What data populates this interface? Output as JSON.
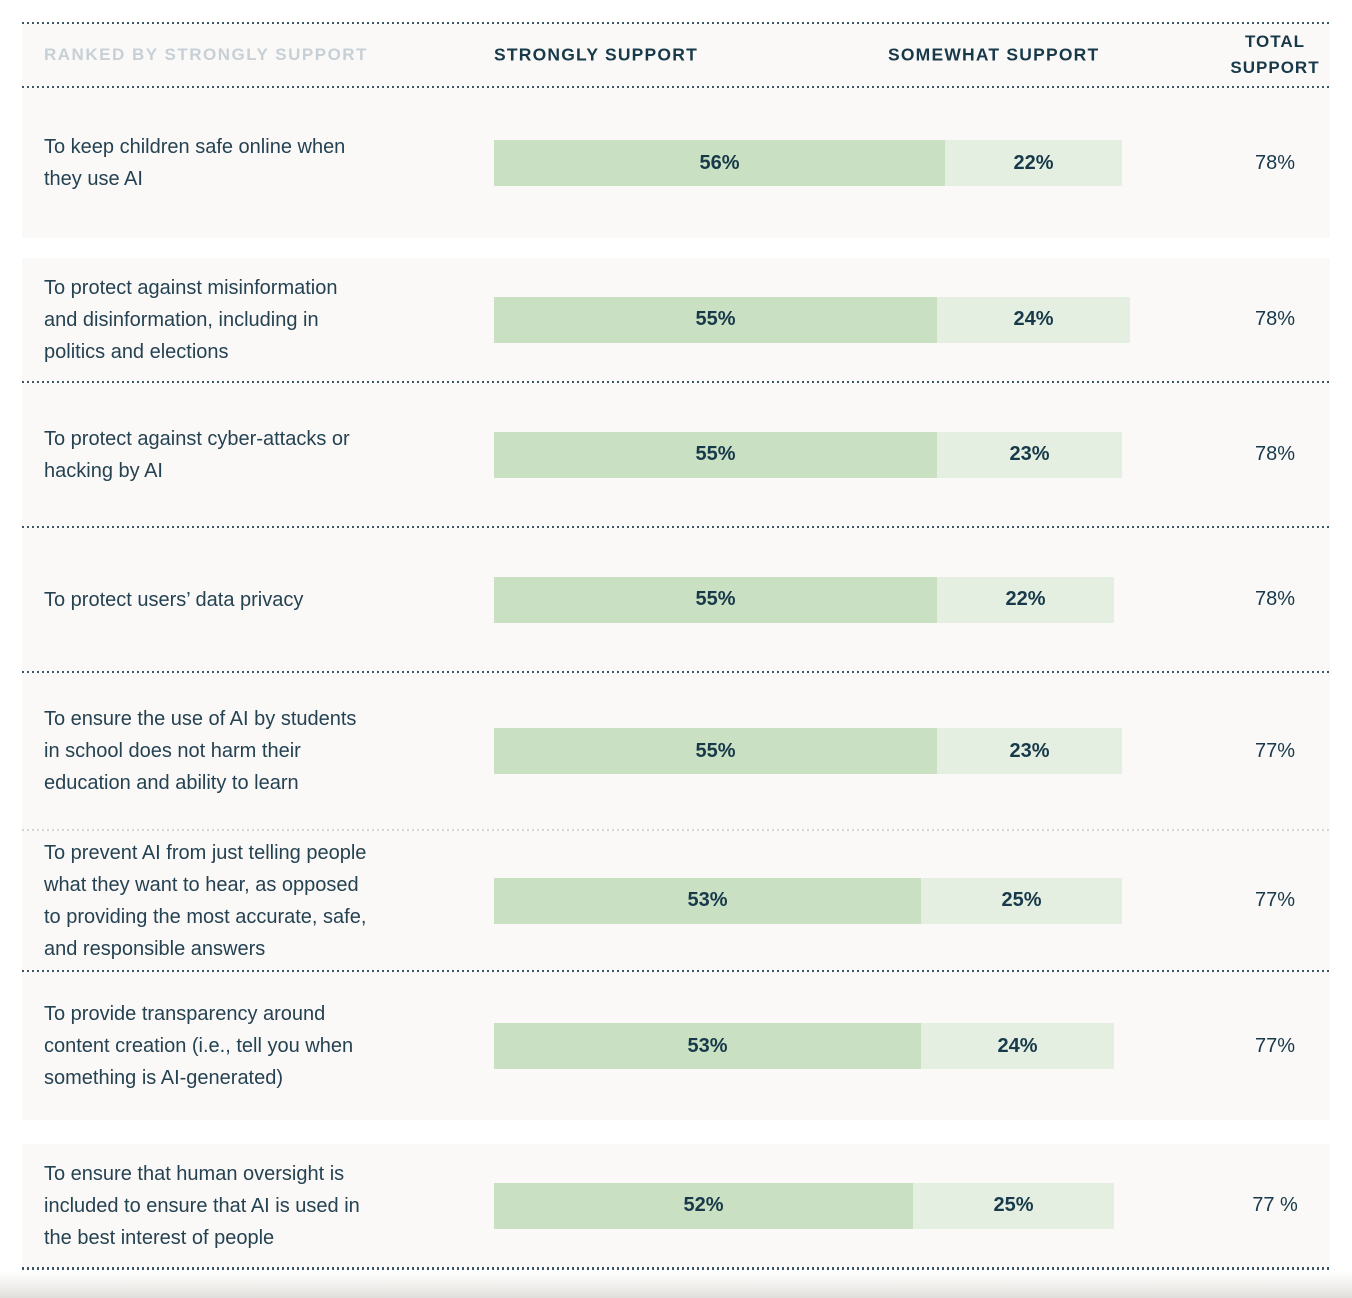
{
  "header": {
    "ranked_by": "RANKED BY STRONGLY SUPPORT",
    "strongly": "STRONGLY SUPPORT",
    "somewhat": "SOMEWHAT SUPPORT",
    "total": "TOTAL SUPPORT"
  },
  "colors": {
    "strongly_bar": "#cae0c3",
    "somewhat_bar": "#e4efe1",
    "navy_text": "#17394a",
    "label_text": "#254252",
    "muted_header_text": "#c7d0d6",
    "card_background": "#faf9f7",
    "separator_dark": "#3c5663",
    "separator_faint": "#d2d6d1"
  },
  "rows": [
    {
      "label_lines": [
        "To keep children safe online when",
        "they use AI"
      ],
      "strongly_value": 56,
      "strongly_label": "56%",
      "somewhat_value": 22,
      "somewhat_label": "22%",
      "total_label": "78%"
    },
    {
      "label_lines": [
        "To protect against misinformation",
        "and disinformation, including in",
        "politics and elections"
      ],
      "strongly_value": 55,
      "strongly_label": "55%",
      "somewhat_value": 24,
      "somewhat_label": "24%",
      "total_label": "78%"
    },
    {
      "label_lines": [
        "To protect against cyber-attacks or",
        "hacking by AI"
      ],
      "strongly_value": 55,
      "strongly_label": "55%",
      "somewhat_value": 23,
      "somewhat_label": "23%",
      "total_label": "78%"
    },
    {
      "label_lines": [
        "To protect users’ data privacy"
      ],
      "strongly_value": 55,
      "strongly_label": "55%",
      "somewhat_value": 22,
      "somewhat_label": "22%",
      "total_label": "78%"
    },
    {
      "label_lines": [
        "To ensure the use of AI by students",
        "in school does not harm their",
        "education and ability to learn"
      ],
      "strongly_value": 55,
      "strongly_label": "55%",
      "somewhat_value": 23,
      "somewhat_label": "23%",
      "total_label": "77%"
    },
    {
      "label_lines": [
        "To prevent AI from just telling people",
        "what they want to hear, as opposed",
        "to providing the most accurate, safe,",
        "and responsible answers"
      ],
      "strongly_value": 53,
      "strongly_label": "53%",
      "somewhat_value": 25,
      "somewhat_label": "25%",
      "total_label": "77%"
    },
    {
      "label_lines": [
        "To provide transparency around",
        "content creation (i.e., tell you when",
        "something is AI-generated)"
      ],
      "strongly_value": 53,
      "strongly_label": "53%",
      "somewhat_value": 24,
      "somewhat_label": "24%",
      "total_label": "77%"
    },
    {
      "label_lines": [
        "To ensure that human oversight is",
        "included to ensure that AI is used in",
        "the best interest of people"
      ],
      "strongly_value": 52,
      "strongly_label": "52%",
      "somewhat_value": 25,
      "somewhat_label": "25%",
      "total_label": "77 %"
    }
  ],
  "chart_data": {
    "type": "bar",
    "orientation": "horizontal",
    "stacked": true,
    "title": "Ranked by strongly support",
    "categories": [
      "To keep children safe online when they use AI",
      "To protect against misinformation and disinformation, including in politics and elections",
      "To protect against cyber-attacks or hacking by AI",
      "To protect users’ data privacy",
      "To ensure the use of AI by students in school does not harm their education and ability to learn",
      "To prevent AI from just telling people what they want to hear, as opposed to providing the most accurate, safe, and responsible answers",
      "To provide transparency around content creation (i.e., tell you when something is AI-generated)",
      "To ensure that human oversight is included to ensure that AI is used in the best interest of people"
    ],
    "series": [
      {
        "name": "Strongly support",
        "values": [
          56,
          55,
          55,
          55,
          55,
          53,
          53,
          52
        ]
      },
      {
        "name": "Somewhat support",
        "values": [
          22,
          24,
          23,
          22,
          23,
          25,
          24,
          25
        ]
      }
    ],
    "totals": [
      78,
      78,
      78,
      78,
      77,
      77,
      77,
      77
    ],
    "value_suffix": "%",
    "xlim": [
      0,
      100
    ],
    "legend_position": "column-headers",
    "grid": false
  }
}
